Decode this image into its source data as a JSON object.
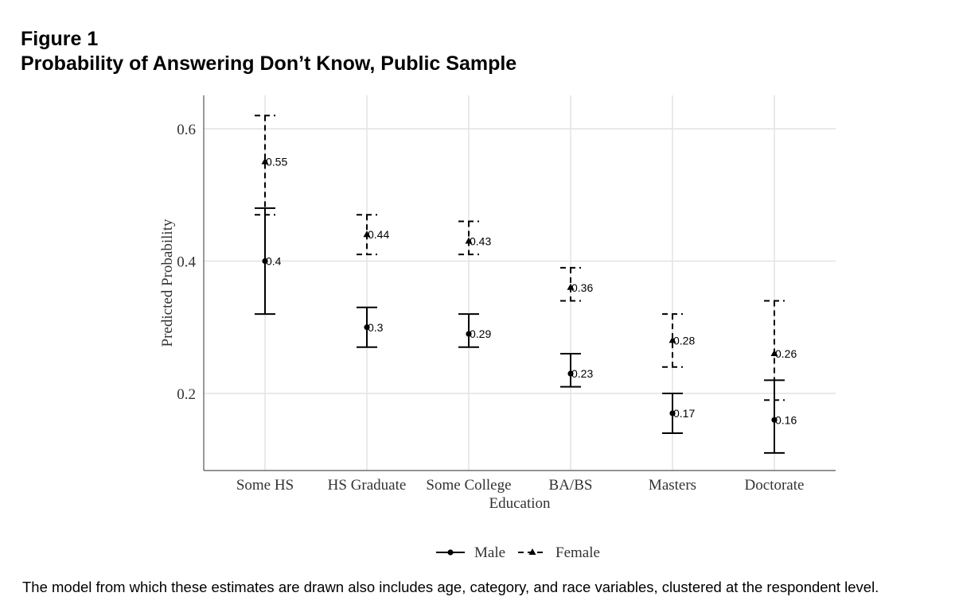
{
  "figure": {
    "label": "Figure 1",
    "title": "Probability of Answering Don’t Know, Public Sample",
    "caption": "The model from which these estimates are drawn also includes age, category, and race variables, clustered at the respondent level."
  },
  "chart_data": {
    "type": "scatter",
    "subtype": "point-with-error-bars",
    "xlabel": "Education",
    "ylabel": "Predicted Probability",
    "categories": [
      "Some HS",
      "HS Graduate",
      "Some College",
      "BA/BS",
      "Masters",
      "Doctorate"
    ],
    "ylim": [
      0.1,
      0.65
    ],
    "yticks": [
      0.2,
      0.4,
      0.6
    ],
    "ytick_labels": [
      "0.2",
      "0.4",
      "0.6"
    ],
    "grid": true,
    "legend_position": "bottom",
    "series": [
      {
        "name": "Male",
        "marker": "circle",
        "line": "solid",
        "values": [
          0.4,
          0.3,
          0.29,
          0.23,
          0.17,
          0.16
        ],
        "labels": [
          "0.4",
          "0.3",
          "0.29",
          "0.23",
          "0.17",
          "0.16"
        ],
        "lower": [
          0.32,
          0.27,
          0.27,
          0.21,
          0.14,
          0.11
        ],
        "upper": [
          0.48,
          0.33,
          0.32,
          0.26,
          0.2,
          0.22
        ]
      },
      {
        "name": "Female",
        "marker": "triangle",
        "line": "dashed",
        "values": [
          0.55,
          0.44,
          0.43,
          0.36,
          0.28,
          0.26
        ],
        "labels": [
          "0.55",
          "0.44",
          "0.43",
          "0.36",
          "0.28",
          "0.26"
        ],
        "lower": [
          0.47,
          0.41,
          0.41,
          0.34,
          0.24,
          0.19
        ],
        "upper": [
          0.62,
          0.47,
          0.46,
          0.39,
          0.32,
          0.34
        ]
      }
    ]
  }
}
